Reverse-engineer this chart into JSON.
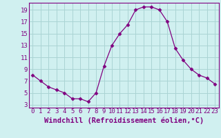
{
  "x": [
    0,
    1,
    2,
    3,
    4,
    5,
    6,
    7,
    8,
    9,
    10,
    11,
    12,
    13,
    14,
    15,
    16,
    17,
    18,
    19,
    20,
    21,
    22,
    23
  ],
  "y": [
    8.0,
    7.0,
    6.0,
    5.5,
    5.0,
    4.0,
    4.0,
    3.5,
    5.0,
    9.5,
    13.0,
    15.0,
    16.5,
    19.0,
    19.5,
    19.5,
    19.0,
    17.0,
    12.5,
    10.5,
    9.0,
    8.0,
    7.5,
    6.5
  ],
  "line_color": "#800080",
  "marker": "D",
  "marker_size": 2.5,
  "bg_color": "#d0f0f0",
  "grid_color": "#aad4d4",
  "xlabel": "Windchill (Refroidissement éolien,°C)",
  "xlabel_color": "#800080",
  "ylabel_ticks": [
    3,
    5,
    7,
    9,
    11,
    13,
    15,
    17,
    19
  ],
  "xticks": [
    0,
    1,
    2,
    3,
    4,
    5,
    6,
    7,
    8,
    9,
    10,
    11,
    12,
    13,
    14,
    15,
    16,
    17,
    18,
    19,
    20,
    21,
    22,
    23
  ],
  "ylim": [
    2.5,
    20.2
  ],
  "xlim": [
    -0.5,
    23.5
  ],
  "tick_color": "#800080",
  "tick_fontsize": 6.5,
  "xlabel_fontsize": 7.5,
  "spine_color": "#800080"
}
